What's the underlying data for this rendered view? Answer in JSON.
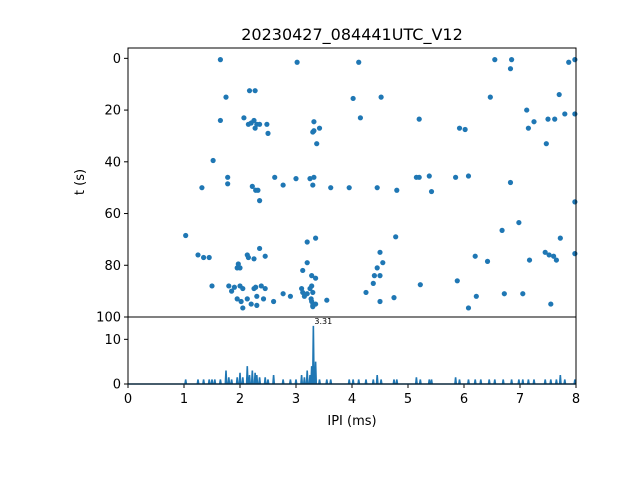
{
  "chart_data": [
    {
      "type": "scatter",
      "title": "20230427_084441UTC_V12",
      "xlabel": "",
      "ylabel": "t (s)",
      "xlim": [
        0,
        8
      ],
      "ylim": [
        100,
        -4
      ],
      "y_inverted": true,
      "yticks": [
        0,
        20,
        40,
        60,
        80,
        100
      ],
      "color": "#1f77b4",
      "points": [
        [
          1.65,
          0.5
        ],
        [
          3.02,
          1.5
        ],
        [
          4.12,
          1.5
        ],
        [
          6.55,
          0.5
        ],
        [
          6.85,
          0.5
        ],
        [
          6.83,
          4
        ],
        [
          7.87,
          1.5
        ],
        [
          7.98,
          0.5
        ],
        [
          1.75,
          15
        ],
        [
          2.17,
          12.5
        ],
        [
          2.27,
          12.5
        ],
        [
          4.02,
          15.5
        ],
        [
          4.52,
          15
        ],
        [
          6.47,
          15
        ],
        [
          7.7,
          14
        ],
        [
          1.65,
          24
        ],
        [
          2.07,
          23
        ],
        [
          2.15,
          25.5
        ],
        [
          2.2,
          25
        ],
        [
          2.25,
          24
        ],
        [
          2.3,
          25.5
        ],
        [
          2.27,
          27
        ],
        [
          2.35,
          25.5
        ],
        [
          2.48,
          25.5
        ],
        [
          2.5,
          29
        ],
        [
          3.32,
          24.5
        ],
        [
          3.32,
          28
        ],
        [
          3.3,
          28.5
        ],
        [
          3.42,
          27
        ],
        [
          4.15,
          23
        ],
        [
          5.2,
          23.5
        ],
        [
          5.92,
          27
        ],
        [
          6.02,
          27.5
        ],
        [
          7.12,
          20
        ],
        [
          7.15,
          27
        ],
        [
          7.25,
          24.5
        ],
        [
          7.5,
          23.5
        ],
        [
          7.62,
          23.5
        ],
        [
          7.8,
          21.5
        ],
        [
          7.98,
          21.5
        ],
        [
          3.37,
          33
        ],
        [
          7.47,
          33
        ],
        [
          1.52,
          39.5
        ],
        [
          1.78,
          46
        ],
        [
          1.32,
          50
        ],
        [
          1.78,
          48.5
        ],
        [
          2.22,
          49.5
        ],
        [
          2.28,
          51
        ],
        [
          2.32,
          51
        ],
        [
          2.35,
          55
        ],
        [
          2.62,
          46
        ],
        [
          2.77,
          49
        ],
        [
          3.0,
          46.5
        ],
        [
          3.25,
          46.5
        ],
        [
          3.32,
          46
        ],
        [
          3.3,
          49
        ],
        [
          3.62,
          50
        ],
        [
          3.95,
          50
        ],
        [
          4.45,
          50
        ],
        [
          4.8,
          51
        ],
        [
          5.15,
          46
        ],
        [
          5.2,
          46
        ],
        [
          5.38,
          45.5
        ],
        [
          5.42,
          51.5
        ],
        [
          5.85,
          46
        ],
        [
          6.08,
          45.5
        ],
        [
          6.83,
          48
        ],
        [
          7.98,
          55.5
        ],
        [
          1.03,
          68.5
        ],
        [
          1.25,
          76
        ],
        [
          1.35,
          77
        ],
        [
          1.45,
          77
        ],
        [
          1.5,
          88
        ],
        [
          1.95,
          81
        ],
        [
          1.97,
          79.5
        ],
        [
          2.0,
          81
        ],
        [
          2.25,
          77.5
        ],
        [
          2.35,
          73.5
        ],
        [
          2.45,
          76.5
        ],
        [
          1.8,
          88
        ],
        [
          1.85,
          90
        ],
        [
          1.9,
          88.5
        ],
        [
          2.0,
          88
        ],
        [
          2.05,
          89
        ],
        [
          1.95,
          93
        ],
        [
          2.02,
          94
        ],
        [
          2.05,
          96.5
        ],
        [
          2.13,
          93
        ],
        [
          2.13,
          76
        ],
        [
          2.15,
          77
        ],
        [
          2.2,
          95
        ],
        [
          2.25,
          89
        ],
        [
          2.28,
          88.5
        ],
        [
          2.3,
          92
        ],
        [
          2.3,
          95.5
        ],
        [
          2.38,
          88
        ],
        [
          2.42,
          93
        ],
        [
          2.45,
          89
        ],
        [
          2.6,
          94
        ],
        [
          2.77,
          91
        ],
        [
          2.9,
          92
        ],
        [
          3.1,
          89
        ],
        [
          3.12,
          90.5
        ],
        [
          3.15,
          92
        ],
        [
          3.2,
          91
        ],
        [
          3.27,
          93
        ],
        [
          3.28,
          94
        ],
        [
          3.3,
          96
        ],
        [
          3.3,
          95.5
        ],
        [
          3.35,
          95
        ],
        [
          3.3,
          90.5
        ],
        [
          3.28,
          88
        ],
        [
          3.25,
          89
        ],
        [
          3.28,
          84
        ],
        [
          3.35,
          85
        ],
        [
          3.2,
          79
        ],
        [
          3.2,
          71
        ],
        [
          3.35,
          69.5
        ],
        [
          3.55,
          93.5
        ],
        [
          3.12,
          82
        ],
        [
          4.25,
          90.5
        ],
        [
          4.38,
          87
        ],
        [
          4.4,
          84
        ],
        [
          4.45,
          81
        ],
        [
          4.5,
          84
        ],
        [
          4.5,
          75
        ],
        [
          4.55,
          79
        ],
        [
          4.5,
          94
        ],
        [
          4.78,
          69
        ],
        [
          4.75,
          92.5
        ],
        [
          5.22,
          87.5
        ],
        [
          5.88,
          86
        ],
        [
          6.08,
          96.5
        ],
        [
          6.2,
          76.5
        ],
        [
          6.22,
          92
        ],
        [
          6.42,
          78.5
        ],
        [
          6.68,
          66.5
        ],
        [
          6.72,
          91
        ],
        [
          6.98,
          63.5
        ],
        [
          7.05,
          91
        ],
        [
          7.17,
          78
        ],
        [
          7.45,
          75
        ],
        [
          7.52,
          76
        ],
        [
          7.55,
          95
        ],
        [
          7.6,
          76.5
        ],
        [
          7.65,
          78
        ],
        [
          7.72,
          69.5
        ],
        [
          7.98,
          75.5
        ]
      ]
    },
    {
      "type": "line",
      "xlabel": "IPI (ms)",
      "ylabel": "",
      "xlim": [
        0,
        8
      ],
      "ylim": [
        0,
        15
      ],
      "xticks": [
        0,
        1,
        2,
        3,
        4,
        5,
        6,
        7,
        8
      ],
      "yticks": [
        0,
        10
      ],
      "color": "#1f77b4",
      "annotation": "3.31",
      "annotation_at": [
        3.31,
        13
      ],
      "spikes": [
        [
          1.03,
          1
        ],
        [
          1.25,
          1
        ],
        [
          1.35,
          1
        ],
        [
          1.45,
          1
        ],
        [
          1.5,
          1
        ],
        [
          1.55,
          1
        ],
        [
          1.65,
          1
        ],
        [
          1.75,
          3
        ],
        [
          1.8,
          1.5
        ],
        [
          1.85,
          1
        ],
        [
          1.95,
          1.5
        ],
        [
          2.0,
          2.5
        ],
        [
          2.05,
          1.5
        ],
        [
          2.13,
          4
        ],
        [
          2.17,
          2
        ],
        [
          2.22,
          3
        ],
        [
          2.27,
          2.5
        ],
        [
          2.3,
          2
        ],
        [
          2.35,
          1.5
        ],
        [
          2.45,
          1.5
        ],
        [
          2.5,
          1
        ],
        [
          2.6,
          2
        ],
        [
          2.77,
          1
        ],
        [
          2.9,
          1
        ],
        [
          3.0,
          1
        ],
        [
          3.1,
          2
        ],
        [
          3.15,
          1.5
        ],
        [
          3.2,
          3
        ],
        [
          3.25,
          2
        ],
        [
          3.28,
          4
        ],
        [
          3.31,
          13
        ],
        [
          3.35,
          5
        ],
        [
          3.42,
          1
        ],
        [
          3.55,
          1
        ],
        [
          3.62,
          1
        ],
        [
          3.95,
          1
        ],
        [
          4.02,
          1
        ],
        [
          4.12,
          1
        ],
        [
          4.25,
          1
        ],
        [
          4.38,
          1
        ],
        [
          4.45,
          2
        ],
        [
          4.52,
          1
        ],
        [
          4.75,
          1
        ],
        [
          4.8,
          1
        ],
        [
          5.15,
          1.5
        ],
        [
          5.22,
          1
        ],
        [
          5.38,
          1
        ],
        [
          5.42,
          1
        ],
        [
          5.85,
          1.5
        ],
        [
          5.92,
          1
        ],
        [
          6.08,
          1
        ],
        [
          6.2,
          1
        ],
        [
          6.3,
          1
        ],
        [
          6.45,
          1
        ],
        [
          6.55,
          1
        ],
        [
          6.7,
          1
        ],
        [
          6.85,
          1
        ],
        [
          6.98,
          1
        ],
        [
          7.05,
          1
        ],
        [
          7.15,
          1
        ],
        [
          7.25,
          1
        ],
        [
          7.45,
          1
        ],
        [
          7.55,
          1
        ],
        [
          7.65,
          1
        ],
        [
          7.72,
          2
        ],
        [
          7.8,
          1
        ],
        [
          7.98,
          1
        ]
      ]
    }
  ]
}
